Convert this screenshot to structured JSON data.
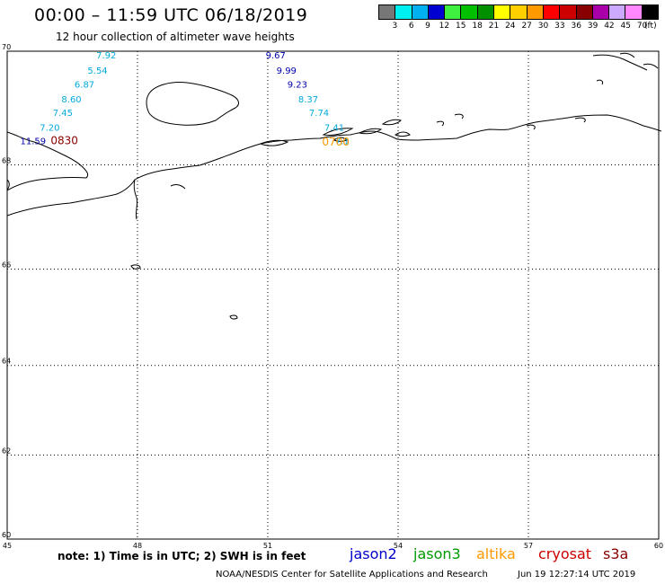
{
  "header": {
    "title": "00:00 – 11:59 UTC 06/18/2019",
    "subtitle": "12 hour collection of altimeter wave heights"
  },
  "legend": {
    "colors": [
      "#777777",
      "#00f0f0",
      "#00b0f0",
      "#0000d0",
      "#40f040",
      "#00c000",
      "#009000",
      "#ffff00",
      "#ffd000",
      "#ff9900",
      "#ff0000",
      "#cc0000",
      "#880000",
      "#aa00aa",
      "#ccaaff",
      "#ff88ff",
      "#000000"
    ],
    "labels": [
      "3",
      "6",
      "9",
      "12",
      "15",
      "18",
      "21",
      "24",
      "27",
      "30",
      "33",
      "36",
      "39",
      "42",
      "45",
      "70",
      "(ft)"
    ]
  },
  "map": {
    "lon_range": [
      45,
      60
    ],
    "lat_range": [
      60,
      70
    ],
    "lon_ticks": [
      "45",
      "48",
      "51",
      "54",
      "57",
      "60"
    ],
    "lat_ticks": [
      "70",
      "68",
      "66",
      "64",
      "62",
      "60"
    ],
    "gridlines": "dotted"
  },
  "tracks": [
    {
      "satellite": "jason3",
      "color": "#00aadd",
      "points": [
        {
          "value": "7.92",
          "lon": 47.05,
          "lat": 69.88
        },
        {
          "value": "5.54",
          "lon": 46.85,
          "lat": 69.62
        },
        {
          "value": "6.87",
          "lon": 46.55,
          "lat": 69.38
        },
        {
          "value": "8.60",
          "lon": 46.25,
          "lat": 69.12
        },
        {
          "value": "7.45",
          "lon": 46.05,
          "lat": 68.88
        },
        {
          "value": "7.20",
          "lon": 45.75,
          "lat": 68.62
        }
      ]
    },
    {
      "satellite": "jason2",
      "color": "#0000aa",
      "points": [
        {
          "value": "11.59",
          "lon": 45.3,
          "lat": 68.38
        }
      ]
    },
    {
      "satellite": "jason2",
      "color": "#0000aa",
      "points": [
        {
          "value": "9.67",
          "lon": 50.95,
          "lat": 69.88
        },
        {
          "value": "9.99",
          "lon": 51.2,
          "lat": 69.62
        },
        {
          "value": "9.23",
          "lon": 51.45,
          "lat": 69.38
        }
      ]
    },
    {
      "satellite": "jason3",
      "color": "#00aadd",
      "points": [
        {
          "value": "8.37",
          "lon": 51.7,
          "lat": 69.12
        },
        {
          "value": "7.74",
          "lon": 51.95,
          "lat": 68.88
        },
        {
          "value": "7.41",
          "lon": 52.3,
          "lat": 68.62
        },
        {
          "value": "7.1",
          "lon": 52.55,
          "lat": 68.38
        }
      ]
    }
  ],
  "time_labels": [
    {
      "text": "0830",
      "color": "#880000",
      "lon": 46.0,
      "lat": 68.38
    },
    {
      "text": "0700",
      "color": "#ff9900",
      "lon": 52.25,
      "lat": 68.35
    }
  ],
  "note": "note: 1) Time is in UTC; 2) SWH is in feet",
  "satellites": [
    {
      "name": "jason2",
      "color": "#0000cc"
    },
    {
      "name": "jason3",
      "color": "#009900"
    },
    {
      "name": "altika",
      "color": "#ff9900"
    },
    {
      "name": "cryosat",
      "color": "#cc0000"
    },
    {
      "name": "s3a",
      "color": "#880000"
    }
  ],
  "footer": {
    "credit": "NOAA/NESDIS Center for Satellite Applications and Research",
    "timestamp": "Jun 19 12:27:14 UTC 2019"
  }
}
